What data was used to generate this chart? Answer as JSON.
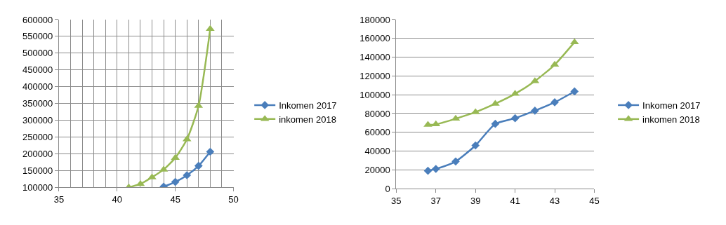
{
  "chart_data": [
    {
      "type": "line",
      "grid": true,
      "legend": "right",
      "xlim": [
        35,
        50
      ],
      "xticks": [
        35,
        40,
        45,
        50
      ],
      "ylim": [
        100000,
        600000
      ],
      "yticks": [
        100000,
        150000,
        200000,
        250000,
        300000,
        350000,
        400000,
        450000,
        500000,
        550000,
        600000
      ],
      "series": [
        {
          "name": "Inkomen 2017",
          "color": "#4a7ebb",
          "marker": "diamond",
          "x": [
            44,
            45,
            46,
            47,
            48
          ],
          "values": [
            102000,
            116000,
            136000,
            164000,
            206000
          ]
        },
        {
          "name": "inkomen 2018",
          "color": "#98b954",
          "marker": "triangle",
          "x": [
            41,
            42,
            43,
            44,
            45,
            46,
            47,
            48
          ],
          "values": [
            100000,
            110000,
            130000,
            153000,
            188000,
            243000,
            343000,
            572000
          ]
        }
      ]
    },
    {
      "type": "line",
      "grid": "y",
      "legend": "right",
      "xlim": [
        35,
        45
      ],
      "xticks": [
        35,
        37,
        39,
        41,
        43,
        45
      ],
      "ylim": [
        0,
        180000
      ],
      "yticks": [
        0,
        20000,
        40000,
        60000,
        80000,
        100000,
        120000,
        140000,
        160000,
        180000
      ],
      "series": [
        {
          "name": "Inkomen 2017",
          "color": "#4a7ebb",
          "marker": "diamond",
          "x": [
            36.6,
            37,
            38,
            39,
            40,
            41,
            42,
            43,
            44
          ],
          "values": [
            19000,
            21000,
            29000,
            46000,
            69000,
            75000,
            83000,
            92000,
            103500
          ]
        },
        {
          "name": "inkomen 2018",
          "color": "#98b954",
          "marker": "triangle",
          "x": [
            36.6,
            37,
            38,
            39,
            40,
            41,
            42,
            43,
            44
          ],
          "values": [
            68000,
            68500,
            74500,
            81500,
            90500,
            101000,
            114500,
            132000,
            156000
          ]
        }
      ]
    }
  ]
}
